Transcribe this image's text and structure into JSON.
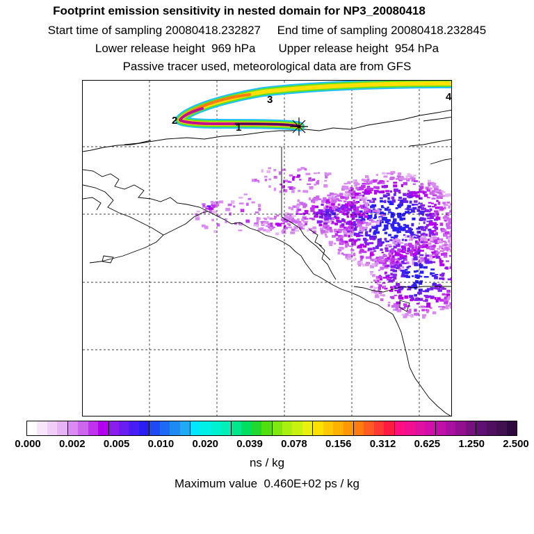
{
  "header": {
    "title": "Footprint emission sensitivity in nested domain for NP3_20080418",
    "line1": "Start time of sampling 20080418.232827     End time of sampling 20080418.232845",
    "line2": "Lower release height  969 hPa       Upper release height  954 hPa",
    "line3": "Passive tracer used, meteorological data are from GFS"
  },
  "map": {
    "trajectory_labels": [
      "1",
      "2",
      "3",
      "4"
    ],
    "release_marker": "asterisk",
    "coastline_color": "#000000",
    "grid_style": "dashed"
  },
  "colorbar": {
    "ticks": [
      "0.000",
      "0.002",
      "0.005",
      "0.010",
      "0.020",
      "0.039",
      "0.078",
      "0.156",
      "0.312",
      "0.625",
      "1.250",
      "2.500"
    ],
    "colors": [
      "#ffffff",
      "#f7e6fb",
      "#efcdf7",
      "#e6b4f3",
      "#d98cf0",
      "#cc66ee",
      "#bf33ee",
      "#b300ee",
      "#8a1eee",
      "#6a1ef0",
      "#4a1ef2",
      "#2a1ef4",
      "#1e4af4",
      "#1e6af4",
      "#1e8af4",
      "#1eaaf4",
      "#00e8ff",
      "#00f0e8",
      "#00f0d0",
      "#00f0b8",
      "#00e88a",
      "#00e060",
      "#20d830",
      "#50e010",
      "#80e810",
      "#a8f010",
      "#c8f010",
      "#e8f010",
      "#ffe000",
      "#ffc800",
      "#ffb000",
      "#ff9800",
      "#ff7a10",
      "#ff5a20",
      "#ff3a30",
      "#ff1a40",
      "#ff1080",
      "#f01090",
      "#e010a0",
      "#d010a8",
      "#c010a8",
      "#a810a0",
      "#901090",
      "#781080",
      "#601070",
      "#501060",
      "#401050",
      "#300840"
    ],
    "unit": "ns / kg",
    "max_label": "Maximum value  0.460E+02 ps / kg"
  }
}
